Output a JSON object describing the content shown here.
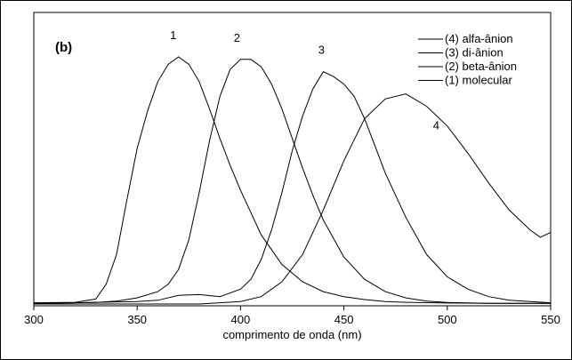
{
  "chart_data": {
    "type": "line",
    "panel_label": "(b)",
    "title": "",
    "xlabel": "comprimento de onda (nm)",
    "ylabel": "",
    "xlim": [
      300,
      550
    ],
    "ylim": [
      0,
      1
    ],
    "xticks": [
      300,
      350,
      400,
      450,
      500,
      550
    ],
    "grid": false,
    "legend_position": "top-right",
    "legend": [
      "(4) alfa-ânion",
      "(3) di-ânion",
      "(2) beta-ânion",
      "(1) molecular"
    ],
    "series": [
      {
        "label": "1",
        "x": [
          300,
          320,
          330,
          335,
          340,
          345,
          350,
          355,
          360,
          365,
          370,
          375,
          380,
          385,
          390,
          395,
          400,
          405,
          410,
          420,
          430,
          440,
          450,
          460,
          470,
          480,
          500,
          520,
          550
        ],
        "values": [
          0.005,
          0.007,
          0.02,
          0.08,
          0.2,
          0.42,
          0.63,
          0.78,
          0.9,
          0.97,
          1.0,
          0.97,
          0.9,
          0.79,
          0.67,
          0.56,
          0.46,
          0.37,
          0.28,
          0.16,
          0.09,
          0.05,
          0.03,
          0.018,
          0.01,
          0.007,
          0.004,
          0.003,
          0.003
        ]
      },
      {
        "label": "2",
        "x": [
          300,
          330,
          340,
          350,
          360,
          365,
          370,
          375,
          380,
          385,
          390,
          395,
          400,
          405,
          410,
          415,
          420,
          425,
          430,
          435,
          440,
          450,
          460,
          470,
          480,
          490,
          500,
          520,
          550
        ],
        "values": [
          0.003,
          0.006,
          0.012,
          0.025,
          0.05,
          0.08,
          0.14,
          0.26,
          0.45,
          0.66,
          0.84,
          0.95,
          0.99,
          0.99,
          0.96,
          0.89,
          0.79,
          0.67,
          0.55,
          0.44,
          0.34,
          0.19,
          0.1,
          0.05,
          0.025,
          0.012,
          0.006,
          0.003,
          0.003
        ]
      },
      {
        "label": "3",
        "x": [
          300,
          350,
          360,
          370,
          380,
          390,
          400,
          405,
          410,
          415,
          420,
          425,
          430,
          435,
          440,
          445,
          450,
          455,
          460,
          465,
          470,
          480,
          490,
          500,
          510,
          520,
          530,
          550
        ],
        "values": [
          0.002,
          0.01,
          0.015,
          0.035,
          0.038,
          0.03,
          0.06,
          0.1,
          0.18,
          0.3,
          0.45,
          0.62,
          0.76,
          0.87,
          0.94,
          0.92,
          0.89,
          0.84,
          0.75,
          0.64,
          0.53,
          0.35,
          0.2,
          0.11,
          0.06,
          0.03,
          0.015,
          0.005
        ]
      },
      {
        "label": "4",
        "x": [
          300,
          380,
          390,
          400,
          410,
          420,
          430,
          440,
          450,
          460,
          470,
          480,
          490,
          500,
          510,
          520,
          530,
          540,
          545,
          550
        ],
        "values": [
          0.0,
          0.0,
          0.005,
          0.01,
          0.03,
          0.09,
          0.2,
          0.38,
          0.58,
          0.75,
          0.83,
          0.85,
          0.8,
          0.72,
          0.61,
          0.49,
          0.38,
          0.3,
          0.27,
          0.29
        ]
      }
    ]
  }
}
